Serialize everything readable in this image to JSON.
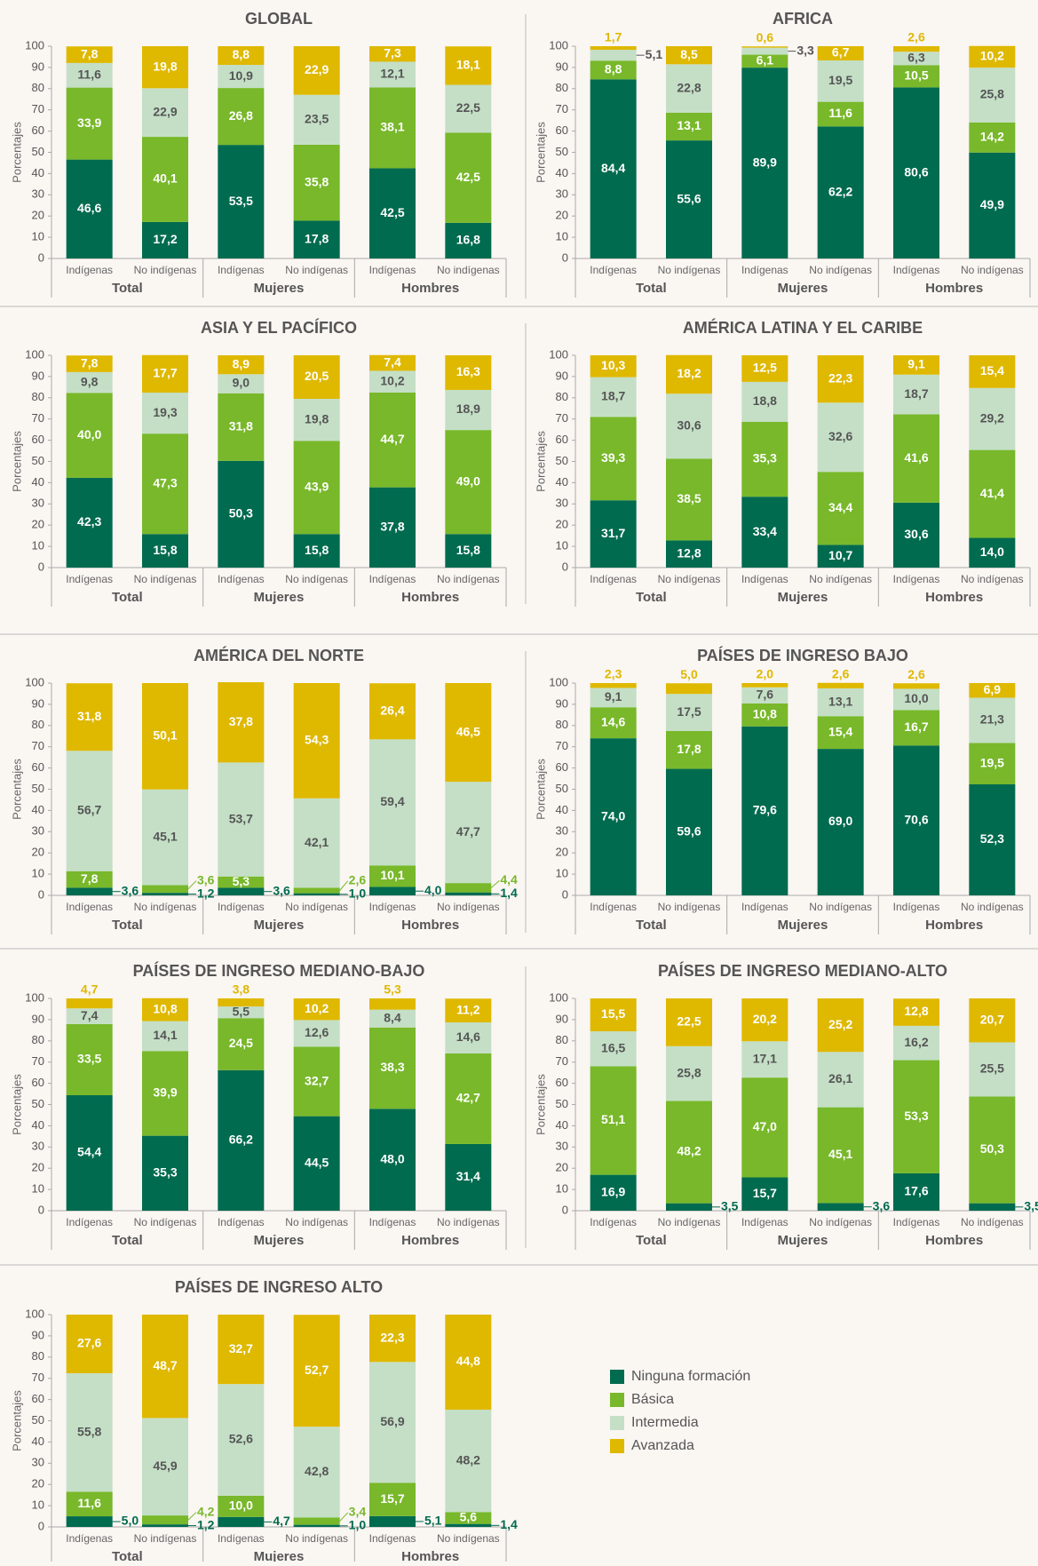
{
  "legend": {
    "series": [
      {
        "name": "Ninguna formación",
        "color": "#006b4f"
      },
      {
        "name": "Básica",
        "color": "#78b82a"
      },
      {
        "name": "Intermedia",
        "color": "#c4dfc6"
      },
      {
        "name": "Avanzada",
        "color": "#dfb800"
      }
    ]
  },
  "chart_data": [
    {
      "type": "bar",
      "stacked": true,
      "title": "GLOBAL",
      "ylabel": "Porcentajes",
      "categories": [
        "Indígenas",
        "No indígenas",
        "Indígenas",
        "No indígenas",
        "Indígenas",
        "No indígenas"
      ],
      "groups": [
        "Total",
        "Mujeres",
        "Hombres"
      ],
      "ylim": [
        0,
        100
      ],
      "yticks": [
        0,
        10,
        20,
        30,
        40,
        50,
        60,
        70,
        80,
        90,
        100
      ],
      "series": [
        {
          "values": [
            46.6,
            17.2,
            53.5,
            17.8,
            42.5,
            16.8
          ],
          "value_labels": [
            "46,6",
            "17,2",
            "53,5",
            "17,8",
            "42,5",
            "16,8"
          ]
        },
        {
          "values": [
            33.9,
            40.1,
            26.8,
            35.8,
            38.1,
            42.5
          ],
          "value_labels": [
            "33,9",
            "40,1",
            "26,8",
            "35,8",
            "38,1",
            "42,5"
          ]
        },
        {
          "values": [
            11.6,
            22.9,
            10.9,
            23.5,
            12.1,
            22.5
          ],
          "value_labels": [
            "11,6",
            "22,9",
            "10,9",
            "23,5",
            "12,1",
            "22,5"
          ]
        },
        {
          "values": [
            7.8,
            19.8,
            8.8,
            22.9,
            7.3,
            18.1
          ],
          "value_labels": [
            "7,8",
            "19,8",
            "8,8",
            "22,9",
            "7,3",
            "18,1"
          ]
        }
      ]
    },
    {
      "type": "bar",
      "stacked": true,
      "title": "AFRICA",
      "ylabel": "Porcentajes",
      "categories": [
        "Indígenas",
        "No indígenas",
        "Indígenas",
        "No indígenas",
        "Indígenas",
        "No indígenas"
      ],
      "groups": [
        "Total",
        "Mujeres",
        "Hombres"
      ],
      "ylim": [
        0,
        100
      ],
      "yticks": [
        0,
        10,
        20,
        30,
        40,
        50,
        60,
        70,
        80,
        90,
        100
      ],
      "series": [
        {
          "values": [
            84.4,
            55.6,
            89.9,
            62.2,
            80.6,
            49.9
          ],
          "value_labels": [
            "84,4",
            "55,6",
            "89,9",
            "62,2",
            "80,6",
            "49,9"
          ]
        },
        {
          "values": [
            8.8,
            13.1,
            6.1,
            11.6,
            10.5,
            14.2
          ],
          "value_labels": [
            "8,8",
            "13,1",
            "6,1",
            "11,6",
            "10,5",
            "14,2"
          ]
        },
        {
          "values": [
            5.1,
            22.8,
            3.3,
            19.5,
            6.3,
            25.8
          ],
          "value_labels": [
            "5,1",
            "22,8",
            "3,3",
            "19,5",
            "6,3",
            "25,8"
          ]
        },
        {
          "values": [
            1.7,
            8.5,
            0.6,
            6.7,
            2.6,
            10.2
          ],
          "value_labels": [
            "1,7",
            "8,5",
            "0,6",
            "6,7",
            "2,6",
            "10,2"
          ]
        }
      ]
    },
    {
      "type": "bar",
      "stacked": true,
      "title": "ASIA Y EL PACÍFICO",
      "ylabel": "Porcentajes",
      "categories": [
        "Indígenas",
        "No indígenas",
        "Indígenas",
        "No indígenas",
        "Indígenas",
        "No indígenas"
      ],
      "groups": [
        "Total",
        "Mujeres",
        "Hombres"
      ],
      "ylim": [
        0,
        100
      ],
      "yticks": [
        0,
        10,
        20,
        30,
        40,
        50,
        60,
        70,
        80,
        90,
        100
      ],
      "series": [
        {
          "values": [
            42.3,
            15.8,
            50.3,
            15.8,
            37.8,
            15.8
          ],
          "value_labels": [
            "42,3",
            "15,8",
            "50,3",
            "15,8",
            "37,8",
            "15,8"
          ]
        },
        {
          "values": [
            40.0,
            47.3,
            31.8,
            43.9,
            44.7,
            49.0
          ],
          "value_labels": [
            "40,0",
            "47,3",
            "31,8",
            "43,9",
            "44,7",
            "49,0"
          ]
        },
        {
          "values": [
            9.8,
            19.3,
            9.0,
            19.8,
            10.2,
            18.9
          ],
          "value_labels": [
            "9,8",
            "19,3",
            "9,0",
            "19,8",
            "10,2",
            "18,9"
          ]
        },
        {
          "values": [
            7.8,
            17.7,
            8.9,
            20.5,
            7.4,
            16.3
          ],
          "value_labels": [
            "7,8",
            "17,7",
            "8,9",
            "20,5",
            "7,4",
            "16,3"
          ]
        }
      ]
    },
    {
      "type": "bar",
      "stacked": true,
      "title": "AMÉRICA LATINA Y EL CARIBE",
      "ylabel": "Porcentajes",
      "categories": [
        "Indígenas",
        "No indígenas",
        "Indígenas",
        "No indígenas",
        "Indígenas",
        "No indígenas"
      ],
      "groups": [
        "Total",
        "Mujeres",
        "Hombres"
      ],
      "ylim": [
        0,
        100
      ],
      "yticks": [
        0,
        10,
        20,
        30,
        40,
        50,
        60,
        70,
        80,
        90,
        100
      ],
      "series": [
        {
          "values": [
            31.7,
            12.8,
            33.4,
            10.7,
            30.6,
            14.0
          ],
          "value_labels": [
            "31,7",
            "12,8",
            "33,4",
            "10,7",
            "30,6",
            "14,0"
          ]
        },
        {
          "values": [
            39.3,
            38.5,
            35.3,
            34.4,
            41.6,
            41.4
          ],
          "value_labels": [
            "39,3",
            "38,5",
            "35,3",
            "34,4",
            "41,6",
            "41,4"
          ]
        },
        {
          "values": [
            18.7,
            30.6,
            18.8,
            32.6,
            18.7,
            29.2
          ],
          "value_labels": [
            "18,7",
            "30,6",
            "18,8",
            "32,6",
            "18,7",
            "29,2"
          ]
        },
        {
          "values": [
            10.3,
            18.2,
            12.5,
            22.3,
            9.1,
            15.4
          ],
          "value_labels": [
            "10,3",
            "18,2",
            "12,5",
            "22,3",
            "9,1",
            "15,4"
          ]
        }
      ]
    },
    {
      "type": "bar",
      "stacked": true,
      "title": "AMÉRICA DEL NORTE",
      "ylabel": "Porcentajes",
      "categories": [
        "Indígenas",
        "No indígenas",
        "Indígenas",
        "No indígenas",
        "Indígenas",
        "No indígenas"
      ],
      "groups": [
        "Total",
        "Mujeres",
        "Hombres"
      ],
      "ylim": [
        0,
        100
      ],
      "yticks": [
        0,
        10,
        20,
        30,
        40,
        50,
        60,
        70,
        80,
        90,
        100
      ],
      "series": [
        {
          "values": [
            3.6,
            1.2,
            3.6,
            1.0,
            4.0,
            1.4
          ],
          "value_labels": [
            "3,6",
            "1,2",
            "3,6",
            "1,0",
            "4,0",
            "1,4"
          ]
        },
        {
          "values": [
            7.8,
            3.6,
            5.3,
            2.6,
            10.1,
            4.4
          ],
          "value_labels": [
            "7,8",
            "3,6",
            "5,3",
            "2,6",
            "10,1",
            "4,4"
          ]
        },
        {
          "values": [
            56.7,
            45.1,
            53.7,
            42.1,
            59.4,
            47.7
          ],
          "value_labels": [
            "56,7",
            "45,1",
            "53,7",
            "42,1",
            "59,4",
            "47,7"
          ]
        },
        {
          "values": [
            31.8,
            50.1,
            37.8,
            54.3,
            26.4,
            46.5
          ],
          "value_labels": [
            "31,8",
            "50,1",
            "37,8",
            "54,3",
            "26,4",
            "46,5"
          ]
        }
      ]
    },
    {
      "type": "bar",
      "stacked": true,
      "title": "PAÍSES DE INGRESO BAJO",
      "ylabel": "Porcentajes",
      "categories": [
        "Indígenas",
        "No indígenas",
        "Indígenas",
        "No indígenas",
        "Indígenas",
        "No indígenas"
      ],
      "groups": [
        "Total",
        "Mujeres",
        "Hombres"
      ],
      "ylim": [
        0,
        100
      ],
      "yticks": [
        0,
        10,
        20,
        30,
        40,
        50,
        60,
        70,
        80,
        90,
        100
      ],
      "series": [
        {
          "values": [
            74.0,
            59.6,
            79.6,
            69.0,
            70.6,
            52.3
          ],
          "value_labels": [
            "74,0",
            "59,6",
            "79,6",
            "69,0",
            "70,6",
            "52,3"
          ]
        },
        {
          "values": [
            14.6,
            17.8,
            10.8,
            15.4,
            16.7,
            19.5
          ],
          "value_labels": [
            "14,6",
            "17,8",
            "10,8",
            "15,4",
            "16,7",
            "19,5"
          ]
        },
        {
          "values": [
            9.1,
            17.5,
            7.6,
            13.1,
            10.0,
            21.3
          ],
          "value_labels": [
            "9,1",
            "17,5",
            "7,6",
            "13,1",
            "10,0",
            "21,3"
          ]
        },
        {
          "values": [
            2.3,
            5.0,
            2.0,
            2.6,
            2.6,
            6.9
          ],
          "value_labels": [
            "2,3",
            "5,0",
            "2,0",
            "2,6",
            "2,6",
            "6,9"
          ]
        }
      ]
    },
    {
      "type": "bar",
      "stacked": true,
      "title": "PAÍSES DE INGRESO MEDIANO-BAJO",
      "ylabel": "Porcentajes",
      "categories": [
        "Indígenas",
        "No indígenas",
        "Indígenas",
        "No indígenas",
        "Indígenas",
        "No indígenas"
      ],
      "groups": [
        "Total",
        "Mujeres",
        "Hombres"
      ],
      "ylim": [
        0,
        100
      ],
      "yticks": [
        0,
        10,
        20,
        30,
        40,
        50,
        60,
        70,
        80,
        90,
        100
      ],
      "series": [
        {
          "values": [
            54.4,
            35.3,
            66.2,
            44.5,
            48.0,
            31.4
          ],
          "value_labels": [
            "54,4",
            "35,3",
            "66,2",
            "44,5",
            "48,0",
            "31,4"
          ]
        },
        {
          "values": [
            33.5,
            39.9,
            24.5,
            32.7,
            38.3,
            42.7
          ],
          "value_labels": [
            "33,5",
            "39,9",
            "24,5",
            "32,7",
            "38,3",
            "42,7"
          ]
        },
        {
          "values": [
            7.4,
            14.1,
            5.5,
            12.6,
            8.4,
            14.6
          ],
          "value_labels": [
            "7,4",
            "14,1",
            "5,5",
            "12,6",
            "8,4",
            "14,6"
          ]
        },
        {
          "values": [
            4.7,
            10.8,
            3.8,
            10.2,
            5.3,
            11.2
          ],
          "value_labels": [
            "4,7",
            "10,8",
            "3,8",
            "10,2",
            "5,3",
            "11,2"
          ]
        }
      ]
    },
    {
      "type": "bar",
      "stacked": true,
      "title": "PAÍSES DE INGRESO MEDIANO-ALTO",
      "ylabel": "Porcentajes",
      "categories": [
        "Indígenas",
        "No indígenas",
        "Indígenas",
        "No indígenas",
        "Indígenas",
        "No indígenas"
      ],
      "groups": [
        "Total",
        "Mujeres",
        "Hombres"
      ],
      "ylim": [
        0,
        100
      ],
      "yticks": [
        0,
        10,
        20,
        30,
        40,
        50,
        60,
        70,
        80,
        90,
        100
      ],
      "series": [
        {
          "values": [
            16.9,
            3.5,
            15.7,
            3.6,
            17.6,
            3.5
          ],
          "value_labels": [
            "16,9",
            "3,5",
            "15,7",
            "3,6",
            "17,6",
            "3,5"
          ]
        },
        {
          "values": [
            51.1,
            48.2,
            47.0,
            45.1,
            53.3,
            50.3
          ],
          "value_labels": [
            "51,1",
            "48,2",
            "47,0",
            "45,1",
            "53,3",
            "50,3"
          ]
        },
        {
          "values": [
            16.5,
            25.8,
            17.1,
            26.1,
            16.2,
            25.5
          ],
          "value_labels": [
            "16,5",
            "25,8",
            "17,1",
            "26,1",
            "16,2",
            "25,5"
          ]
        },
        {
          "values": [
            15.5,
            22.5,
            20.2,
            25.2,
            12.8,
            20.7
          ],
          "value_labels": [
            "15,5",
            "22,5",
            "20,2",
            "25,2",
            "12,8",
            "20,7"
          ]
        }
      ]
    },
    {
      "type": "bar",
      "stacked": true,
      "title": "PAÍSES DE INGRESO ALTO",
      "ylabel": "Porcentajes",
      "categories": [
        "Indígenas",
        "No indígenas",
        "Indígenas",
        "No indígenas",
        "Indígenas",
        "No indígenas"
      ],
      "groups": [
        "Total",
        "Mujeres",
        "Hombres"
      ],
      "ylim": [
        0,
        100
      ],
      "yticks": [
        0,
        10,
        20,
        30,
        40,
        50,
        60,
        70,
        80,
        90,
        100
      ],
      "series": [
        {
          "values": [
            5.0,
            1.2,
            4.7,
            1.0,
            5.1,
            1.4
          ],
          "value_labels": [
            "5,0",
            "1,2",
            "4,7",
            "1,0",
            "5,1",
            "1,4"
          ]
        },
        {
          "values": [
            11.6,
            4.2,
            10.0,
            3.4,
            15.7,
            5.6
          ],
          "value_labels": [
            "11,6",
            "4,2",
            "10,0",
            "3,4",
            "15,7",
            "5,6"
          ]
        },
        {
          "values": [
            55.8,
            45.9,
            52.6,
            42.8,
            56.9,
            48.2
          ],
          "value_labels": [
            "55,8",
            "45,9",
            "52,6",
            "42,8",
            "56,9",
            "48,2"
          ]
        },
        {
          "values": [
            27.6,
            48.7,
            32.7,
            52.7,
            22.3,
            44.8
          ],
          "value_labels": [
            "27,6",
            "48,7",
            "32,7",
            "52,7",
            "22,3",
            "44,8"
          ]
        }
      ]
    }
  ]
}
